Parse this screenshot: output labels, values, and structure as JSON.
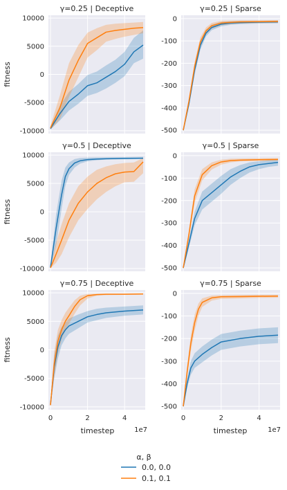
{
  "chart_data": {
    "type": "line",
    "xlabel": "timestep",
    "ylabel": "fitness",
    "x_offset_text": "1e7",
    "x_ticks": [
      "0",
      "2",
      "4"
    ],
    "x_range": [
      0,
      5
    ],
    "grid": true,
    "legend": {
      "title": "α, β",
      "position": "bottom-center",
      "entries": [
        {
          "label": "0.0, 0.0",
          "color": "#1f77b4"
        },
        {
          "label": "0.1, 0.1",
          "color": "#ff7f0e"
        }
      ]
    },
    "panels": [
      {
        "title": "γ=0.25 | Deceptive",
        "ylim": [
          -10500,
          10500
        ],
        "yticks": [
          -10000,
          -5000,
          0,
          5000,
          10000
        ],
        "series": [
          {
            "name": "0.0, 0.0",
            "x": [
              0,
              0.5,
              1,
              1.5,
              2,
              2.5,
              3,
              3.5,
              4,
              4.5,
              5
            ],
            "y": [
              -9600,
              -7000,
              -4800,
              -3500,
              -2000,
              -1500,
              -500,
              500,
              1800,
              4000,
              5200
            ],
            "lo": [
              -9800,
              -8200,
              -6400,
              -5200,
              -3800,
              -3300,
              -2500,
              -1500,
              -300,
              2000,
              2800
            ],
            "hi": [
              -9300,
              -5600,
              -3100,
              -1700,
              -100,
              500,
              1600,
              2600,
              4000,
              6500,
              7800
            ]
          },
          {
            "name": "0.1, 0.1",
            "x": [
              0,
              0.5,
              1,
              1.5,
              2,
              2.5,
              3,
              3.5,
              4,
              4.5,
              5
            ],
            "y": [
              -9500,
              -6000,
              -1000,
              2500,
              5500,
              6500,
              7500,
              7800,
              8000,
              8200,
              8300
            ],
            "lo": [
              -9800,
              -8000,
              -4000,
              -500,
              3000,
              4300,
              5800,
              6300,
              6700,
              7000,
              7300
            ],
            "hi": [
              -9100,
              -3800,
              2000,
              5200,
              7400,
              8200,
              8800,
              9000,
              9100,
              9200,
              9300
            ]
          }
        ]
      },
      {
        "title": "γ=0.25 | Sparse",
        "ylim": [
          -515,
          15
        ],
        "yticks": [
          -500,
          -400,
          -300,
          -200,
          -100,
          0
        ],
        "series": [
          {
            "name": "0.0, 0.0",
            "x": [
              0,
              0.3,
              0.6,
              0.9,
              1.2,
              1.5,
              2,
              2.5,
              3,
              4,
              5
            ],
            "y": [
              -500,
              -380,
              -230,
              -120,
              -65,
              -40,
              -25,
              -20,
              -18,
              -16,
              -15
            ],
            "lo": [
              -505,
              -395,
              -250,
              -140,
              -80,
              -52,
              -35,
              -28,
              -25,
              -22,
              -21
            ],
            "hi": [
              -495,
              -365,
              -210,
              -100,
              -50,
              -28,
              -15,
              -12,
              -11,
              -10,
              -9
            ]
          },
          {
            "name": "0.1, 0.1",
            "x": [
              0,
              0.3,
              0.6,
              0.9,
              1.2,
              1.5,
              2,
              2.5,
              3,
              4,
              5
            ],
            "y": [
              -500,
              -370,
              -215,
              -105,
              -55,
              -32,
              -20,
              -17,
              -15,
              -14,
              -13
            ],
            "lo": [
              -505,
              -385,
              -235,
              -125,
              -70,
              -45,
              -30,
              -25,
              -22,
              -20,
              -19
            ],
            "hi": [
              -495,
              -355,
              -195,
              -85,
              -40,
              -20,
              -10,
              -9,
              -8,
              -8,
              -7
            ]
          }
        ]
      },
      {
        "title": "γ=0.5 | Deceptive",
        "ylim": [
          -10500,
          10500
        ],
        "yticks": [
          -10000,
          -5000,
          0,
          5000,
          10000
        ],
        "series": [
          {
            "name": "0.0, 0.0",
            "x": [
              0,
              0.3,
              0.6,
              0.8,
              1,
              1.3,
              1.6,
              2,
              2.5,
              3,
              4,
              5
            ],
            "y": [
              -9800,
              -3000,
              3000,
              6200,
              7600,
              8600,
              9000,
              9200,
              9300,
              9350,
              9400,
              9450
            ],
            "lo": [
              -9900,
              -6000,
              500,
              4500,
              6500,
              7800,
              8500,
              8900,
              9100,
              9200,
              9300,
              9350
            ],
            "hi": [
              -9600,
              -500,
              5500,
              7800,
              8700,
              9300,
              9500,
              9550,
              9600,
              9600,
              9650,
              9700
            ]
          },
          {
            "name": "0.1, 0.1",
            "x": [
              0,
              0.3,
              0.6,
              1,
              1.5,
              2,
              2.5,
              3,
              3.5,
              4,
              4.5,
              5
            ],
            "y": [
              -9900,
              -7500,
              -5000,
              -1500,
              1500,
              3500,
              5000,
              6000,
              6700,
              7000,
              7100,
              8800
            ],
            "lo": [
              -9950,
              -9000,
              -7500,
              -4500,
              -1500,
              500,
              2200,
              3500,
              4500,
              5200,
              5300,
              6800
            ],
            "hi": [
              -9800,
              -5500,
              -2200,
              1500,
              4500,
              6200,
              7400,
              8000,
              8400,
              8600,
              8700,
              9500
            ]
          }
        ]
      },
      {
        "title": "γ=0.5 | Sparse",
        "ylim": [
          -515,
          15
        ],
        "yticks": [
          -500,
          -400,
          -300,
          -200,
          -100,
          0
        ],
        "series": [
          {
            "name": "0.0, 0.0",
            "x": [
              0,
              0.3,
              0.6,
              1,
              1.5,
              2,
              2.5,
              3,
              3.5,
              4,
              4.5,
              5
            ],
            "y": [
              -500,
              -390,
              -280,
              -200,
              -165,
              -130,
              -95,
              -70,
              -50,
              -40,
              -35,
              -30
            ],
            "lo": [
              -505,
              -410,
              -310,
              -240,
              -205,
              -170,
              -130,
              -100,
              -75,
              -60,
              -50,
              -45
            ],
            "hi": [
              -495,
              -370,
              -250,
              -160,
              -125,
              -90,
              -60,
              -42,
              -30,
              -25,
              -20,
              -18
            ]
          },
          {
            "name": "0.1, 0.1",
            "x": [
              0,
              0.3,
              0.6,
              1,
              1.5,
              2,
              2.5,
              3,
              4,
              5
            ],
            "y": [
              -500,
              -350,
              -180,
              -85,
              -45,
              -28,
              -22,
              -20,
              -18,
              -17
            ],
            "lo": [
              -505,
              -370,
              -210,
              -110,
              -62,
              -40,
              -30,
              -26,
              -24,
              -22
            ],
            "hi": [
              -495,
              -330,
              -150,
              -60,
              -30,
              -18,
              -14,
              -13,
              -12,
              -11
            ]
          }
        ]
      },
      {
        "title": "γ=0.75 | Deceptive",
        "ylim": [
          -10500,
          10500
        ],
        "yticks": [
          -10000,
          -5000,
          0,
          5000,
          10000
        ],
        "series": [
          {
            "name": "0.0, 0.0",
            "x": [
              0,
              0.2,
              0.4,
              0.6,
              0.8,
              1,
              1.5,
              2,
              2.5,
              3,
              4,
              5
            ],
            "y": [
              -9600,
              -3000,
              500,
              2500,
              3500,
              4200,
              5000,
              5800,
              6200,
              6500,
              6800,
              7000
            ],
            "lo": [
              -9800,
              -5000,
              -1500,
              800,
              2000,
              2800,
              3800,
              4800,
              5200,
              5600,
              6000,
              6200
            ],
            "hi": [
              -9400,
              -1000,
              2500,
              4000,
              4800,
              5500,
              6200,
              6800,
              7200,
              7400,
              7600,
              7800
            ]
          },
          {
            "name": "0.1, 0.1",
            "x": [
              0,
              0.2,
              0.4,
              0.6,
              0.8,
              1,
              1.3,
              1.6,
              2,
              2.5,
              3,
              4,
              5
            ],
            "y": [
              -9700,
              -2500,
              1500,
              3500,
              5000,
              6000,
              7600,
              8800,
              9500,
              9700,
              9750,
              9750,
              9800
            ],
            "lo": [
              -9850,
              -4800,
              -600,
              1800,
              3500,
              4600,
              6300,
              7800,
              9000,
              9500,
              9600,
              9650,
              9700
            ],
            "hi": [
              -9500,
              -300,
              3500,
              5200,
              6500,
              7400,
              8700,
              9500,
              9800,
              9850,
              9850,
              9850,
              9900
            ]
          }
        ]
      },
      {
        "title": "γ=0.75 | Sparse",
        "ylim": [
          -515,
          15
        ],
        "yticks": [
          -500,
          -400,
          -300,
          -200,
          -100,
          0
        ],
        "series": [
          {
            "name": "0.0, 0.0",
            "x": [
              0,
              0.2,
              0.4,
              0.6,
              1,
              1.5,
              2,
              3,
              4,
              5
            ],
            "y": [
              -500,
              -400,
              -330,
              -300,
              -270,
              -240,
              -215,
              -200,
              -190,
              -185
            ],
            "lo": [
              -505,
              -420,
              -360,
              -330,
              -305,
              -275,
              -250,
              -235,
              -225,
              -220
            ],
            "hi": [
              -495,
              -380,
              -300,
              -265,
              -235,
              -205,
              -180,
              -165,
              -155,
              -150
            ]
          },
          {
            "name": "0.1, 0.1",
            "x": [
              0,
              0.2,
              0.4,
              0.6,
              0.8,
              1,
              1.5,
              2,
              3,
              4,
              5
            ],
            "y": [
              -500,
              -350,
              -220,
              -130,
              -70,
              -40,
              -20,
              -15,
              -14,
              -13,
              -12
            ],
            "lo": [
              -505,
              -375,
              -255,
              -165,
              -100,
              -60,
              -32,
              -24,
              -22,
              -20,
              -19
            ],
            "hi": [
              -495,
              -325,
              -185,
              -95,
              -45,
              -22,
              -10,
              -8,
              -7,
              -6,
              -6
            ]
          }
        ]
      }
    ]
  }
}
